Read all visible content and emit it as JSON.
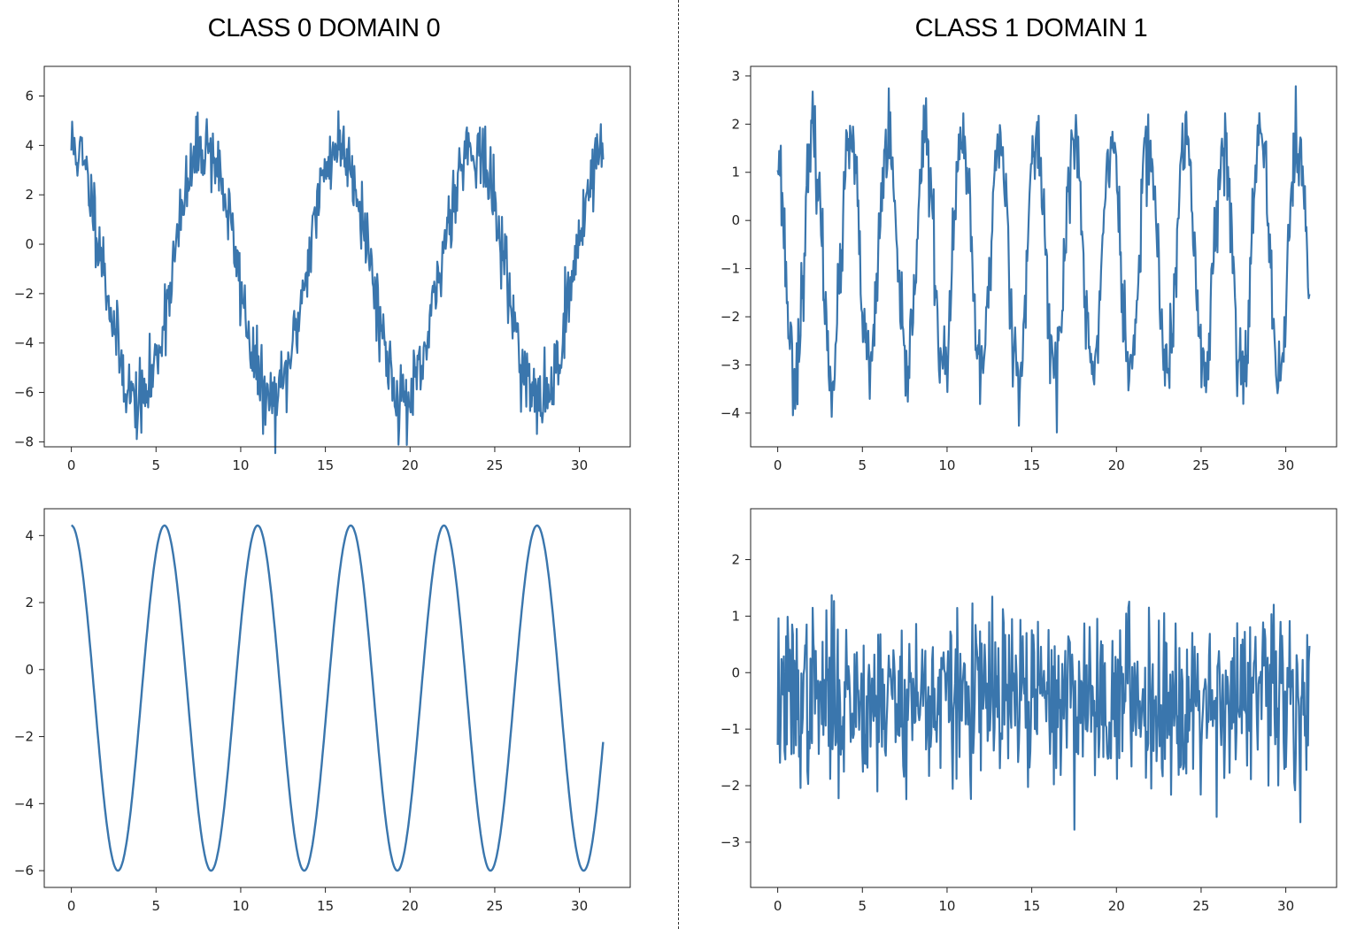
{
  "titles": {
    "left": "CLASS 0 DOMAIN 0",
    "right": "CLASS 1 DOMAIN 1"
  },
  "colors": {
    "line": "#3a76ad",
    "axis": "#222222"
  },
  "chart_data": [
    {
      "id": "top-left",
      "type": "line",
      "description_signal": "noisy sinusoid, amplitude ~5.2, offset ~-1.2, period ~7.9, noise ~0.7",
      "xlim": [
        -1.6,
        33.0
      ],
      "ylim": [
        -8.2,
        7.2
      ],
      "xticks": [
        0,
        5,
        10,
        15,
        20,
        25,
        30
      ],
      "yticks": [
        -8,
        -6,
        -4,
        -2,
        0,
        2,
        4,
        6
      ],
      "series": [
        {
          "generator": {
            "kind": "sine",
            "amp": 5.2,
            "offset": -1.2,
            "period": 7.9,
            "phase": 0,
            "noise": 0.75,
            "xmax": 31.4,
            "n": 700,
            "seed": 11
          }
        }
      ]
    },
    {
      "id": "top-right",
      "type": "line",
      "description_signal": "noisy sinusoid, amplitude ~2.4, offset ~-0.8, period ~2.2, noise ~0.45",
      "xlim": [
        -1.6,
        33.0
      ],
      "ylim": [
        -4.7,
        3.2
      ],
      "xticks": [
        0,
        5,
        10,
        15,
        20,
        25,
        30
      ],
      "yticks": [
        -4,
        -3,
        -2,
        -1,
        0,
        1,
        2,
        3
      ],
      "series": [
        {
          "generator": {
            "kind": "sine",
            "amp": 2.4,
            "offset": -0.75,
            "period": 2.2,
            "phase": 0.3,
            "noise": 0.45,
            "xmax": 31.4,
            "n": 700,
            "seed": 23
          }
        }
      ]
    },
    {
      "id": "bottom-left",
      "type": "line",
      "description_signal": "clean sinusoid, amplitude ~5.15, offset ~-0.85, period ~5.5",
      "xlim": [
        -1.6,
        33.0
      ],
      "ylim": [
        -6.5,
        4.8
      ],
      "xticks": [
        0,
        5,
        10,
        15,
        20,
        25,
        30
      ],
      "yticks": [
        -6,
        -4,
        -2,
        0,
        2,
        4
      ],
      "series": [
        {
          "generator": {
            "kind": "sine",
            "amp": 5.15,
            "offset": -0.85,
            "period": 5.5,
            "phase": 0,
            "noise": 0,
            "xmax": 31.4,
            "n": 700,
            "seed": 1
          }
        }
      ]
    },
    {
      "id": "bottom-right",
      "type": "line",
      "description_signal": "noise around ~-0.45 with sd ~0.75",
      "xlim": [
        -1.6,
        33.0
      ],
      "ylim": [
        -3.8,
        2.9
      ],
      "xticks": [
        0,
        5,
        10,
        15,
        20,
        25,
        30
      ],
      "yticks": [
        -3,
        -2,
        -1,
        0,
        1,
        2
      ],
      "series": [
        {
          "generator": {
            "kind": "noise",
            "amp": 0,
            "offset": -0.45,
            "period": 1,
            "phase": 0,
            "noise": 0.75,
            "xmax": 31.4,
            "n": 700,
            "seed": 37
          }
        }
      ]
    }
  ]
}
